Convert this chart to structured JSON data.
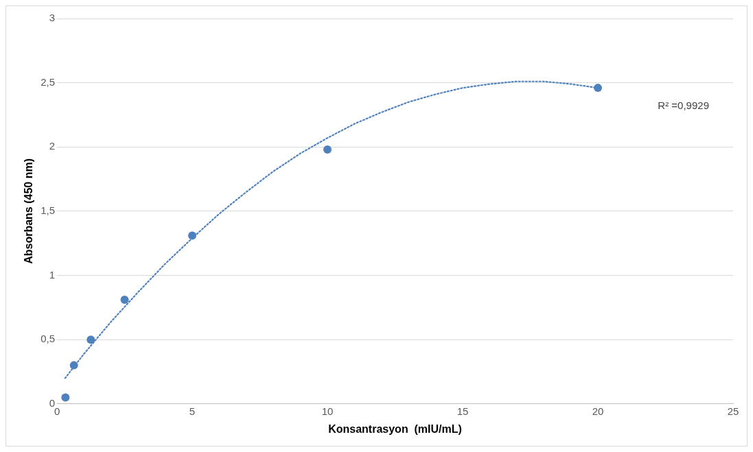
{
  "chart_data": {
    "type": "scatter",
    "xlabel": "Konsantrasyon  (mIU/mL)",
    "ylabel": "Absorbans (450 nm)",
    "xlim": [
      0,
      25
    ],
    "xticks": [
      0,
      5,
      10,
      15,
      20,
      25
    ],
    "ylim": [
      0,
      3
    ],
    "yticks": [
      0,
      {
        "value": 0.5,
        "label": "0,5"
      },
      1,
      {
        "value": 1.5,
        "label": "1,5"
      },
      2,
      {
        "value": 2.5,
        "label": "2,5"
      },
      3
    ],
    "grid": "y",
    "legend": false,
    "series": [
      {
        "color": "#4f81bd",
        "marker": "circle",
        "x": [
          0.3125,
          0.625,
          1.25,
          2.5,
          5,
          10,
          20
        ],
        "values": [
          0.05,
          0.3,
          0.5,
          0.81,
          1.31,
          1.98,
          2.46
        ]
      },
      {
        "type": "line",
        "color": "#4f81bd",
        "marker": "none",
        "line_style": "dotted",
        "x": [
          0.3,
          1,
          2,
          3,
          4,
          5,
          6,
          7,
          8,
          9,
          10,
          11,
          12,
          13,
          14,
          15,
          16,
          17,
          18,
          19,
          20
        ],
        "values": [
          0.2,
          0.39,
          0.64,
          0.87,
          1.09,
          1.29,
          1.48,
          1.65,
          1.81,
          1.95,
          2.07,
          2.18,
          2.27,
          2.35,
          2.41,
          2.46,
          2.49,
          2.51,
          2.51,
          2.49,
          2.46
        ]
      }
    ],
    "annotations": [
      "R² =0,9929"
    ]
  }
}
